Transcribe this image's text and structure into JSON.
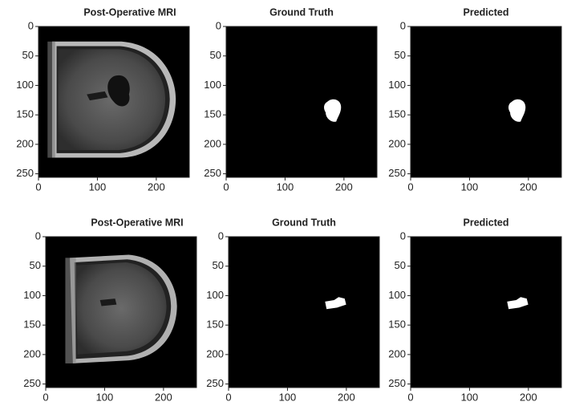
{
  "chart_data": [
    {
      "type": "image",
      "title": "Post-Operative MRI",
      "xlim": [
        0,
        256
      ],
      "ylim": [
        256,
        0
      ],
      "xticks": [
        0,
        100,
        200
      ],
      "yticks": [
        0,
        50,
        100,
        150,
        200,
        250
      ]
    },
    {
      "type": "image",
      "title": "Ground Truth",
      "xlim": [
        0,
        256
      ],
      "ylim": [
        256,
        0
      ],
      "xticks": [
        0,
        100,
        200
      ],
      "yticks": [
        0,
        50,
        100,
        150,
        200,
        250
      ]
    },
    {
      "type": "image",
      "title": "Predicted",
      "xlim": [
        0,
        256
      ],
      "ylim": [
        256,
        0
      ],
      "xticks": [
        0,
        100,
        200
      ],
      "yticks": [
        0,
        50,
        100,
        150,
        200,
        250
      ]
    },
    {
      "type": "image",
      "title": "Post-Operative MRI",
      "xlim": [
        0,
        256
      ],
      "ylim": [
        256,
        0
      ],
      "xticks": [
        0,
        100,
        200
      ],
      "yticks": [
        0,
        50,
        100,
        150,
        200,
        250
      ]
    },
    {
      "type": "image",
      "title": "Ground Truth",
      "xlim": [
        0,
        256
      ],
      "ylim": [
        256,
        0
      ],
      "xticks": [
        0,
        100,
        200
      ],
      "yticks": [
        0,
        50,
        100,
        150,
        200,
        250
      ]
    },
    {
      "type": "image",
      "title": "Predicted",
      "xlim": [
        0,
        256
      ],
      "ylim": [
        256,
        0
      ],
      "xticks": [
        0,
        100,
        200
      ],
      "yticks": [
        0,
        50,
        100,
        150,
        200,
        250
      ]
    }
  ]
}
